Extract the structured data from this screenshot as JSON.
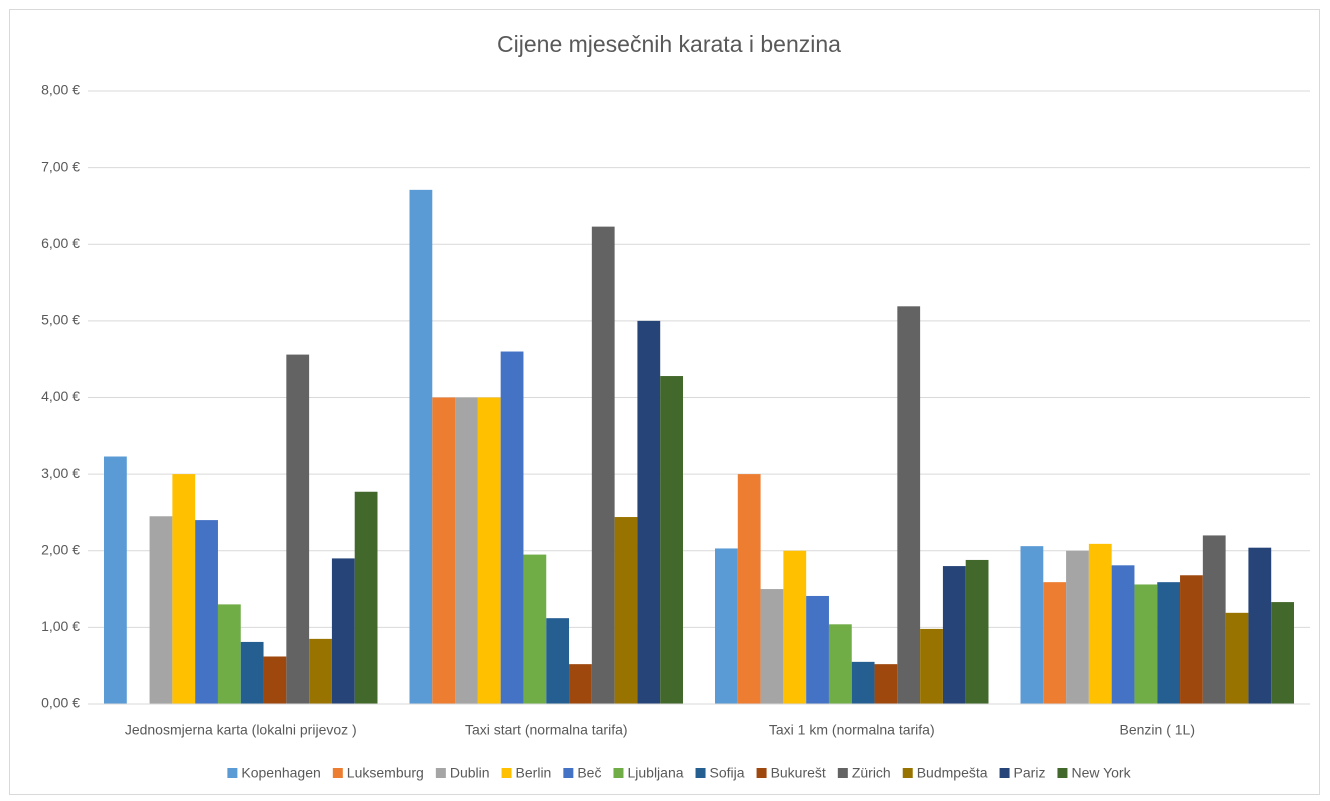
{
  "chart_data": {
    "type": "bar",
    "title": "Cijene mjesečnih karata i benzina",
    "categories": [
      "Jednosmjerna karta (lokalni prijevoz )",
      "Taxi start (normalna tarifa)",
      "Taxi 1 km (normalna tarifa)",
      "Benzin ( 1L)"
    ],
    "series": [
      {
        "name": "Kopenhagen",
        "color": "#5b9bd5",
        "values": [
          3.23,
          6.71,
          2.03,
          2.06
        ]
      },
      {
        "name": "Luksemburg",
        "color": "#ed7d31",
        "values": [
          null,
          4.0,
          3.0,
          1.59
        ]
      },
      {
        "name": "Dublin",
        "color": "#a5a5a5",
        "values": [
          2.45,
          4.0,
          1.5,
          2.0
        ]
      },
      {
        "name": "Berlin",
        "color": "#ffc000",
        "values": [
          3.0,
          4.0,
          2.0,
          2.09
        ]
      },
      {
        "name": "Beč",
        "color": "#4472c4",
        "values": [
          2.4,
          4.6,
          1.41,
          1.81
        ]
      },
      {
        "name": "Ljubljana",
        "color": "#70ad47",
        "values": [
          1.3,
          1.95,
          1.04,
          1.56
        ]
      },
      {
        "name": "Sofija",
        "color": "#255e91",
        "values": [
          0.81,
          1.12,
          0.55,
          1.59
        ]
      },
      {
        "name": "Bukurešt",
        "color": "#9e480e",
        "values": [
          0.62,
          0.52,
          0.52,
          1.68
        ]
      },
      {
        "name": "Zürich",
        "color": "#636363",
        "values": [
          4.56,
          6.23,
          5.19,
          2.2
        ]
      },
      {
        "name": "Budmpešta",
        "color": "#997300",
        "values": [
          0.85,
          2.44,
          0.98,
          1.19
        ]
      },
      {
        "name": "Pariz",
        "color": "#264478",
        "values": [
          1.9,
          5.0,
          1.8,
          2.04
        ]
      },
      {
        "name": "New York",
        "color": "#43682b",
        "values": [
          2.77,
          4.28,
          1.88,
          1.33
        ]
      }
    ],
    "ylim": [
      0,
      8
    ],
    "yticks": [
      {
        "value": 0,
        "label": "0,00 €"
      },
      {
        "value": 1,
        "label": "1,00 €"
      },
      {
        "value": 2,
        "label": "2,00 €"
      },
      {
        "value": 3,
        "label": "3,00 €"
      },
      {
        "value": 4,
        "label": "4,00 €"
      },
      {
        "value": 5,
        "label": "5,00 €"
      },
      {
        "value": 6,
        "label": "6,00 €"
      },
      {
        "value": 7,
        "label": "7,00 €"
      },
      {
        "value": 8,
        "label": "8,00 €"
      }
    ],
    "grid": true,
    "legend": "bottom"
  }
}
